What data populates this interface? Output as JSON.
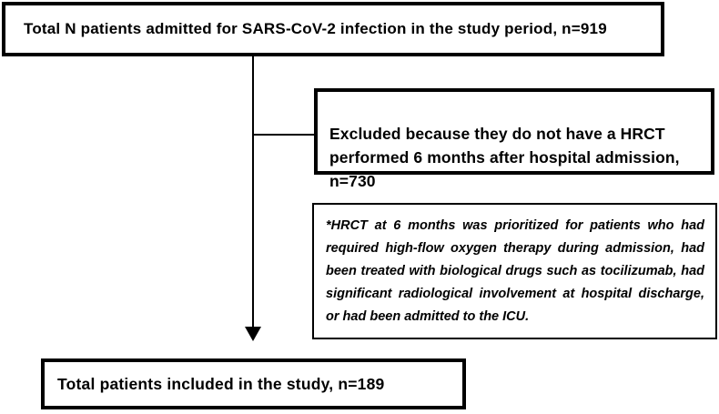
{
  "diagram": {
    "title_context": "Patient inclusion flowchart",
    "counts": {
      "admitted": 919,
      "excluded": 730,
      "included": 189
    },
    "boxes": {
      "top": {
        "text": "Total N patients admitted for SARS-CoV-2 infection in the study period, n=919"
      },
      "excluded": {
        "text": "Excluded because they do not have a HRCT\nperformed 6 months after hospital admission,\nn=730"
      },
      "note": {
        "text": "*HRCT at 6 months was prioritized for patients who had required high-flow oxygen therapy during admission, had been treated with biological drugs such as tocilizumab, had significant radiological involvement at hospital discharge, or had been admitted to the ICU."
      },
      "included": {
        "text": "Total patients included in the study, n=189"
      }
    },
    "colors": {
      "border": "#000000",
      "text": "#000000",
      "background": "#ffffff"
    }
  }
}
